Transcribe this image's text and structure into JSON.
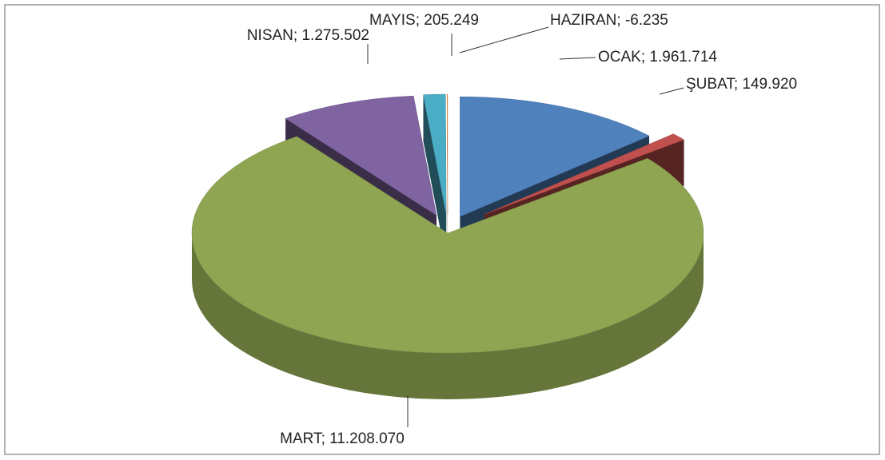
{
  "chart_data": {
    "type": "pie",
    "categories": [
      "OCAK",
      "ŞUBAT",
      "MART",
      "NISAN",
      "MAYIS",
      "HAZIRAN"
    ],
    "values": [
      1961714,
      149920,
      11208070,
      1275502,
      205249,
      -6235
    ],
    "value_labels": [
      "1.961.714",
      "149.920",
      "11.208.070",
      "1.275.502",
      "205.249",
      "-6.235"
    ],
    "label_separator": "; ",
    "colors": [
      "#4f81bd",
      "#c0504d",
      "#8fa552",
      "#8064a2",
      "#4bacc6",
      "#f79646"
    ]
  }
}
